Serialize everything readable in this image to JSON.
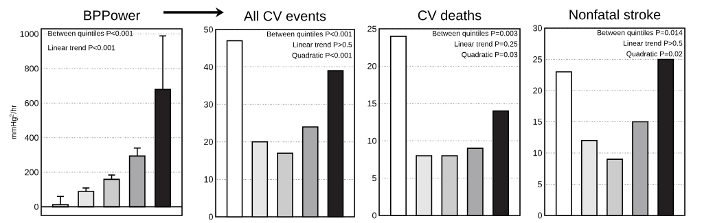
{
  "chart_data": [
    {
      "type": "bar",
      "title": "BPPower",
      "ylabel": "mmHg$^{2}$/hr",
      "categories": [
        null,
        null,
        null,
        null,
        null
      ],
      "values": [
        12,
        89,
        159,
        294,
        679
      ],
      "errors": [
        [
          12,
          60
        ],
        [
          89,
          109
        ],
        [
          159,
          184
        ],
        [
          294,
          340
        ],
        [
          679,
          989
        ]
      ],
      "colors": [
        "#ffffff",
        "#e6e6e6",
        "#cccccc",
        "#a9a9ab",
        "#231f20"
      ],
      "ylim": [
        -50,
        1030
      ],
      "yticks": [
        0,
        200,
        400,
        600,
        800,
        1000
      ],
      "grid": "y",
      "ref_lines": [
        {
          "axis": "y",
          "value": 0
        }
      ],
      "annotations": [
        "Between quintiles P<0.001",
        "Linear trend P<0.001"
      ]
    },
    {
      "type": "bar",
      "title": "All CV events",
      "categories": [
        null,
        null,
        null,
        null,
        null
      ],
      "values": [
        47,
        20,
        17,
        24,
        39
      ],
      "colors": [
        "#ffffff",
        "#e6e6e6",
        "#cccccc",
        "#a9a9ab",
        "#231f20"
      ],
      "ylim": [
        0,
        50
      ],
      "yticks": [
        0,
        10,
        20,
        30,
        40,
        50
      ],
      "grid": "y",
      "annotations": [
        "Between quintiles P<0.001",
        "Linear trend P>0.5",
        "Quadratic P<0.001"
      ]
    },
    {
      "type": "bar",
      "title": "CV deaths",
      "categories": [
        null,
        null,
        null,
        null,
        null
      ],
      "values": [
        24,
        8,
        8,
        9,
        14
      ],
      "colors": [
        "#ffffff",
        "#e6e6e6",
        "#cccccc",
        "#a9a9ab",
        "#231f20"
      ],
      "ylim": [
        0,
        25
      ],
      "yticks": [
        0,
        5,
        10,
        15,
        20,
        25
      ],
      "grid": "y",
      "annotations": [
        "Between quintiles P=0.003",
        "Linear trend P=0.25",
        "Quadratic P=0.03"
      ]
    },
    {
      "type": "bar",
      "title": "Nonfatal stroke",
      "categories": [
        null,
        null,
        null,
        null,
        null
      ],
      "values": [
        23,
        12,
        9,
        15,
        25
      ],
      "colors": [
        "#ffffff",
        "#e6e6e6",
        "#cccccc",
        "#a9a9ab",
        "#231f20"
      ],
      "ylim": [
        0,
        30
      ],
      "yticks": [
        0,
        5,
        10,
        15,
        20,
        25,
        30
      ],
      "grid": "y",
      "annotations": [
        "Between quintiles P=0.014",
        "Linear trend P>0.5",
        "Quadratic P=0.02"
      ]
    }
  ]
}
